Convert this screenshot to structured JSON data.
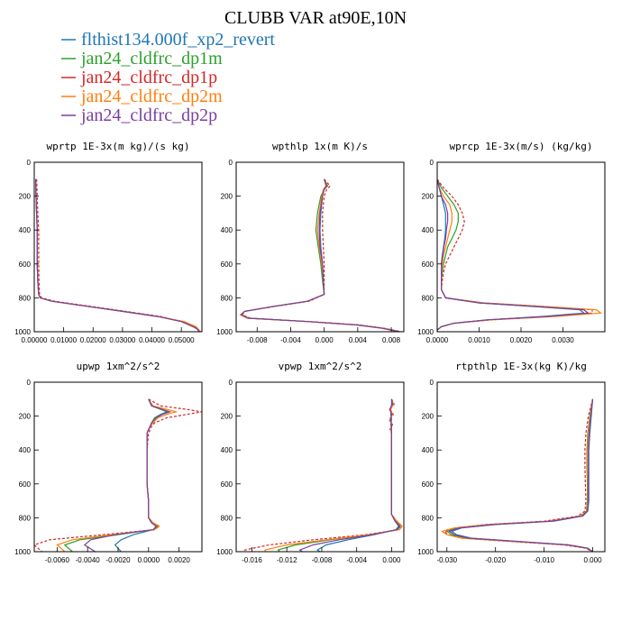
{
  "title": "CLUBB VAR at90E,10N",
  "legend": [
    {
      "label": "flthist134.000f_xp2_revert",
      "color": "#1f77b4"
    },
    {
      "label": "jan24_cldfrc_dp1m",
      "color": "#2ca02c"
    },
    {
      "label": "jan24_cldfrc_dp1p",
      "color": "#d62728"
    },
    {
      "label": "jan24_cldfrc_dp2m",
      "color": "#ff7f0e"
    },
    {
      "label": "jan24_cldfrc_dp2p",
      "color": "#7b3fa0"
    }
  ],
  "chart_data": [
    {
      "type": "line",
      "title": "wprtp  1E-3x(m kg)/(s kg)",
      "xlim": [
        0,
        0.057
      ],
      "ylim": [
        1000,
        0
      ],
      "xticks": [
        0.0,
        0.01,
        0.02,
        0.03,
        0.04,
        0.05
      ],
      "xtick_labels": [
        "0.00000",
        "0.01000",
        "0.02000",
        "0.03000",
        "0.04000",
        "0.05000"
      ],
      "yticks": [
        0,
        200,
        400,
        600,
        800,
        1000
      ],
      "y": [
        100,
        200,
        300,
        400,
        500,
        600,
        700,
        780,
        800,
        820,
        850,
        880,
        910,
        940,
        970,
        985,
        1000
      ],
      "series": [
        {
          "values": [
            0.0005,
            0.0006,
            0.0008,
            0.001,
            0.001,
            0.001,
            0.0012,
            0.0015,
            0.002,
            0.006,
            0.018,
            0.03,
            0.042,
            0.05,
            0.054,
            0.0555,
            0.056
          ]
        },
        {
          "values": [
            0.0005,
            0.0006,
            0.0008,
            0.001,
            0.001,
            0.001,
            0.0012,
            0.0015,
            0.002,
            0.006,
            0.018,
            0.03,
            0.042,
            0.05,
            0.0545,
            0.0555,
            0.0562
          ]
        },
        {
          "values": [
            0.0008,
            0.001,
            0.0012,
            0.0015,
            0.0015,
            0.0015,
            0.0016,
            0.0018,
            0.0025,
            0.007,
            0.019,
            0.031,
            0.043,
            0.05,
            0.0545,
            0.0555,
            0.056
          ]
        },
        {
          "values": [
            0.0005,
            0.0006,
            0.0008,
            0.001,
            0.001,
            0.001,
            0.0012,
            0.0015,
            0.002,
            0.006,
            0.018,
            0.03,
            0.042,
            0.051,
            0.055,
            0.0558,
            0.0565
          ]
        },
        {
          "values": [
            0.0005,
            0.0006,
            0.0008,
            0.001,
            0.001,
            0.001,
            0.0012,
            0.0015,
            0.002,
            0.006,
            0.018,
            0.03,
            0.042,
            0.05,
            0.054,
            0.0555,
            0.056
          ]
        }
      ]
    },
    {
      "type": "line",
      "title": "wpthlp  1x(m K)/s",
      "xlim": [
        -0.0105,
        0.0095
      ],
      "ylim": [
        1000,
        0
      ],
      "xticks": [
        -0.008,
        -0.004,
        0.0,
        0.004,
        0.008
      ],
      "xtick_labels": [
        "-0.008",
        "-0.004",
        "0.000",
        "0.004",
        "0.008"
      ],
      "yticks": [
        0,
        200,
        400,
        600,
        800,
        1000
      ],
      "y": [
        100,
        140,
        160,
        200,
        300,
        400,
        500,
        600,
        700,
        780,
        820,
        850,
        880,
        900,
        920,
        940,
        960,
        980,
        1000
      ],
      "series": [
        {
          "values": [
            0.0,
            0.0003,
            0.0,
            -0.0002,
            -0.0004,
            -0.0005,
            -0.0004,
            -0.0002,
            -0.0001,
            0.0,
            -0.002,
            -0.006,
            -0.0095,
            -0.0099,
            -0.009,
            -0.002,
            0.004,
            0.007,
            0.009
          ]
        },
        {
          "values": [
            0.0,
            0.0004,
            0.0,
            -0.0004,
            -0.0008,
            -0.001,
            -0.0007,
            -0.0004,
            -0.0002,
            0.0,
            -0.002,
            -0.006,
            -0.0095,
            -0.0099,
            -0.009,
            -0.002,
            0.004,
            0.007,
            0.009
          ]
        },
        {
          "values": [
            0.0,
            0.0007,
            0.0003,
            0.0,
            -0.0002,
            -0.0002,
            -0.0001,
            0.0,
            0.0,
            0.0,
            -0.0018,
            -0.0058,
            -0.0094,
            -0.0098,
            -0.0088,
            -0.0018,
            0.0042,
            0.0072,
            0.0092
          ]
        },
        {
          "values": [
            0.0,
            0.0002,
            -0.0001,
            -0.0003,
            -0.0006,
            -0.0008,
            -0.0006,
            -0.0003,
            -0.0001,
            0.0,
            -0.002,
            -0.006,
            -0.0095,
            -0.01,
            -0.0092,
            -0.0022,
            0.0038,
            0.0068,
            0.0088
          ]
        },
        {
          "values": [
            0.0,
            0.0003,
            0.0,
            -0.0002,
            -0.0005,
            -0.0006,
            -0.0005,
            -0.0002,
            -0.0001,
            0.0,
            -0.002,
            -0.006,
            -0.0095,
            -0.0099,
            -0.009,
            -0.002,
            0.004,
            0.007,
            0.009
          ]
        }
      ]
    },
    {
      "type": "line",
      "title": "wprcp  1E-3x(m/s) (kg/kg)",
      "xlim": [
        0,
        0.004
      ],
      "ylim": [
        1000,
        0
      ],
      "xticks": [
        0.0,
        0.001,
        0.002,
        0.003
      ],
      "xtick_labels": [
        "0.0000",
        "0.0010",
        "0.0020",
        "0.0030"
      ],
      "yticks": [
        0,
        200,
        400,
        600,
        800,
        1000
      ],
      "y": [
        100,
        150,
        200,
        250,
        300,
        350,
        400,
        450,
        500,
        550,
        600,
        650,
        700,
        750,
        800,
        830,
        850,
        870,
        890,
        910,
        930,
        950,
        970,
        990,
        1000
      ],
      "series": [
        {
          "values": [
            0.0,
            5e-05,
            0.0001,
            0.00015,
            0.0002,
            0.0002,
            0.0002,
            0.00018,
            0.00015,
            0.00012,
            0.0001,
            0.0001,
            0.0001,
            0.0001,
            0.0002,
            0.001,
            0.0022,
            0.0034,
            0.0035,
            0.0025,
            0.0012,
            0.0004,
            0.0001,
            0.0,
            0.0
          ]
        },
        {
          "values": [
            0.0,
            0.0001,
            0.00025,
            0.0004,
            0.0005,
            0.0005,
            0.00045,
            0.00035,
            0.00025,
            0.0002,
            0.00015,
            0.00012,
            0.0001,
            0.0001,
            0.0002,
            0.001,
            0.0023,
            0.0035,
            0.0036,
            0.0026,
            0.0012,
            0.0004,
            0.0001,
            0.0,
            0.0
          ]
        },
        {
          "values": [
            0.0,
            0.00015,
            0.00035,
            0.0005,
            0.0006,
            0.00065,
            0.0006,
            0.0005,
            0.0004,
            0.0003,
            0.0002,
            0.00015,
            0.00012,
            0.0001,
            0.0002,
            0.0011,
            0.0025,
            0.0037,
            0.0037,
            0.0027,
            0.0013,
            0.0004,
            0.0001,
            0.0,
            0.0
          ]
        },
        {
          "values": [
            0.0,
            5e-05,
            0.00015,
            0.0003,
            0.00035,
            0.00035,
            0.0003,
            0.00025,
            0.0002,
            0.00015,
            0.00012,
            0.0001,
            0.0001,
            0.0001,
            0.0002,
            0.0011,
            0.0025,
            0.0038,
            0.0039,
            0.0028,
            0.0013,
            0.0004,
            0.0001,
            0.0,
            0.0
          ]
        },
        {
          "values": [
            0.0,
            5e-05,
            0.0001,
            0.0002,
            0.00025,
            0.00025,
            0.00022,
            0.0002,
            0.00016,
            0.00013,
            0.0001,
            0.0001,
            0.0001,
            0.0001,
            0.0002,
            0.001,
            0.0023,
            0.0035,
            0.0036,
            0.0026,
            0.0012,
            0.0004,
            0.0001,
            0.0,
            0.0
          ]
        }
      ]
    },
    {
      "type": "line",
      "title": "upwp  1xm^2/s^2",
      "xlim": [
        -0.0075,
        0.0035
      ],
      "ylim": [
        1000,
        0
      ],
      "xticks": [
        -0.006,
        -0.004,
        -0.002,
        0.0,
        0.002
      ],
      "xtick_labels": [
        "-0.0060",
        "-0.0040",
        "-0.0020",
        "0.0000",
        "0.0020"
      ],
      "yticks": [
        0,
        200,
        400,
        600,
        800,
        1000
      ],
      "y": [
        100,
        140,
        160,
        175,
        190,
        210,
        240,
        260,
        280,
        300,
        400,
        500,
        600,
        700,
        800,
        830,
        850,
        870,
        900,
        930,
        960,
        1000
      ],
      "series": [
        {
          "values": [
            0.0,
            0.0002,
            0.0008,
            0.0012,
            0.0008,
            0.0004,
            0.0002,
            0.0001,
            0.0,
            -0.0001,
            -0.0001,
            -0.0001,
            -0.0001,
            0.0,
            0.0,
            0.0002,
            0.0005,
            0.0003,
            -0.001,
            -0.0018,
            -0.0022,
            -0.0018
          ]
        },
        {
          "values": [
            0.0,
            0.0002,
            0.0008,
            0.0013,
            0.0009,
            0.0004,
            0.0002,
            0.0001,
            0.0,
            -0.0001,
            -0.0001,
            -0.0001,
            -0.0001,
            0.0,
            0.0,
            0.0002,
            0.0006,
            0.0003,
            -0.002,
            -0.0045,
            -0.0055,
            -0.005
          ]
        },
        {
          "values": [
            0.0,
            0.0008,
            0.0025,
            0.0035,
            0.0025,
            0.0012,
            0.0004,
            0.0002,
            0.0001,
            0.0,
            -0.0001,
            -0.0001,
            -0.0001,
            0.0,
            0.0,
            0.0003,
            0.0007,
            0.0004,
            -0.003,
            -0.0065,
            -0.0075,
            -0.007
          ]
        },
        {
          "values": [
            0.0,
            0.0003,
            0.0012,
            0.0018,
            0.0012,
            0.0006,
            0.0003,
            0.0001,
            0.0,
            -0.0001,
            -0.0001,
            -0.0001,
            -0.0001,
            0.0,
            0.0,
            0.0003,
            0.0007,
            0.0004,
            -0.0025,
            -0.005,
            -0.006,
            -0.0055
          ]
        },
        {
          "values": [
            0.0,
            0.0002,
            0.0009,
            0.0014,
            0.0009,
            0.0005,
            0.0002,
            0.0001,
            0.0,
            -0.0001,
            -0.0001,
            -0.0001,
            -0.0001,
            0.0,
            0.0,
            0.0002,
            0.0005,
            0.0003,
            -0.0022,
            -0.0038,
            -0.0042,
            -0.0035
          ]
        }
      ]
    },
    {
      "type": "line",
      "title": "vpwp  1xm^2/s^2",
      "xlim": [
        -0.0178,
        0.0014
      ],
      "ylim": [
        1000,
        0
      ],
      "xticks": [
        -0.016,
        -0.012,
        -0.008,
        -0.004,
        0.0
      ],
      "xtick_labels": [
        "-0.016",
        "-0.012",
        "-0.008",
        "-0.004",
        "0.000"
      ],
      "yticks": [
        0,
        200,
        400,
        600,
        800,
        1000
      ],
      "y": [
        100,
        130,
        160,
        190,
        220,
        250,
        280,
        300,
        400,
        500,
        600,
        700,
        780,
        820,
        850,
        870,
        900,
        930,
        960,
        990,
        1000
      ],
      "series": [
        {
          "values": [
            0.0,
            0.0,
            -0.0001,
            -0.0001,
            0.0,
            -0.0001,
            0.0,
            0.0,
            0.0,
            0.0,
            0.0,
            0.0,
            0.0,
            0.0004,
            0.0008,
            0.0005,
            -0.002,
            -0.005,
            -0.0075,
            -0.0085,
            -0.0082
          ]
        },
        {
          "values": [
            0.0,
            0.0002,
            -0.0002,
            0.0001,
            -0.0002,
            0.0,
            -0.0001,
            0.0,
            0.0,
            0.0,
            0.0,
            0.0,
            0.0,
            0.0005,
            0.001,
            0.0007,
            -0.0025,
            -0.007,
            -0.011,
            -0.013,
            -0.0128
          ]
        },
        {
          "values": [
            0.0,
            0.0003,
            -0.0003,
            0.0002,
            -0.0003,
            0.0001,
            -0.0002,
            0.0,
            0.0,
            0.0,
            0.0,
            0.0,
            0.0,
            0.0006,
            0.0012,
            0.0008,
            -0.003,
            -0.009,
            -0.014,
            -0.0168,
            -0.017
          ]
        },
        {
          "values": [
            0.0,
            0.0002,
            -0.0001,
            0.0001,
            -0.0002,
            0.0,
            -0.0001,
            0.0,
            0.0,
            0.0,
            0.0,
            0.0,
            0.0,
            0.0006,
            0.0012,
            0.0009,
            -0.0025,
            -0.0075,
            -0.012,
            -0.0145,
            -0.0145
          ]
        },
        {
          "values": [
            0.0,
            0.0001,
            -0.0002,
            0.0,
            -0.0001,
            0.0,
            0.0,
            0.0,
            0.0,
            0.0,
            0.0,
            0.0,
            0.0,
            0.0004,
            0.0009,
            0.0006,
            -0.0022,
            -0.006,
            -0.009,
            -0.0105,
            -0.0102
          ]
        }
      ]
    },
    {
      "type": "line",
      "title": "rtpthlp  1E-3x(kg K)/kg",
      "xlim": [
        -0.032,
        0.0025
      ],
      "ylim": [
        1000,
        0
      ],
      "xticks": [
        -0.03,
        -0.02,
        -0.01,
        0.0
      ],
      "xtick_labels": [
        "-0.030",
        "-0.020",
        "-0.010",
        "0.000"
      ],
      "yticks": [
        0,
        200,
        400,
        600,
        800,
        1000
      ],
      "y": [
        100,
        200,
        300,
        400,
        500,
        600,
        700,
        760,
        790,
        820,
        840,
        860,
        880,
        900,
        920,
        940,
        960,
        980,
        1000
      ],
      "series": [
        {
          "values": [
            0.0,
            -0.0003,
            -0.0006,
            -0.0008,
            -0.0008,
            -0.0008,
            -0.0008,
            -0.001,
            -0.002,
            -0.008,
            -0.02,
            -0.027,
            -0.029,
            -0.028,
            -0.025,
            -0.015,
            -0.005,
            -0.001,
            0.0
          ]
        },
        {
          "values": [
            0.0,
            -0.0006,
            -0.001,
            -0.0012,
            -0.0012,
            -0.0011,
            -0.0011,
            -0.0013,
            -0.0025,
            -0.009,
            -0.021,
            -0.028,
            -0.03,
            -0.029,
            -0.026,
            -0.016,
            -0.005,
            -0.001,
            0.0
          ]
        },
        {
          "values": [
            0.0,
            -0.0009,
            -0.0014,
            -0.0016,
            -0.0016,
            -0.0015,
            -0.0014,
            -0.0016,
            -0.003,
            -0.01,
            -0.022,
            -0.0285,
            -0.0305,
            -0.0298,
            -0.027,
            -0.017,
            -0.006,
            -0.0015,
            0.0
          ]
        },
        {
          "values": [
            0.0,
            -0.0005,
            -0.0009,
            -0.0011,
            -0.0011,
            -0.001,
            -0.001,
            -0.0012,
            -0.0025,
            -0.009,
            -0.0215,
            -0.0285,
            -0.031,
            -0.03,
            -0.027,
            -0.0165,
            -0.0055,
            -0.0012,
            0.0
          ]
        },
        {
          "values": [
            0.0,
            -0.0004,
            -0.0007,
            -0.0009,
            -0.0009,
            -0.0009,
            -0.0009,
            -0.0011,
            -0.0022,
            -0.0085,
            -0.0205,
            -0.0275,
            -0.0295,
            -0.0285,
            -0.0255,
            -0.0155,
            -0.005,
            -0.001,
            0.0
          ]
        }
      ]
    }
  ]
}
